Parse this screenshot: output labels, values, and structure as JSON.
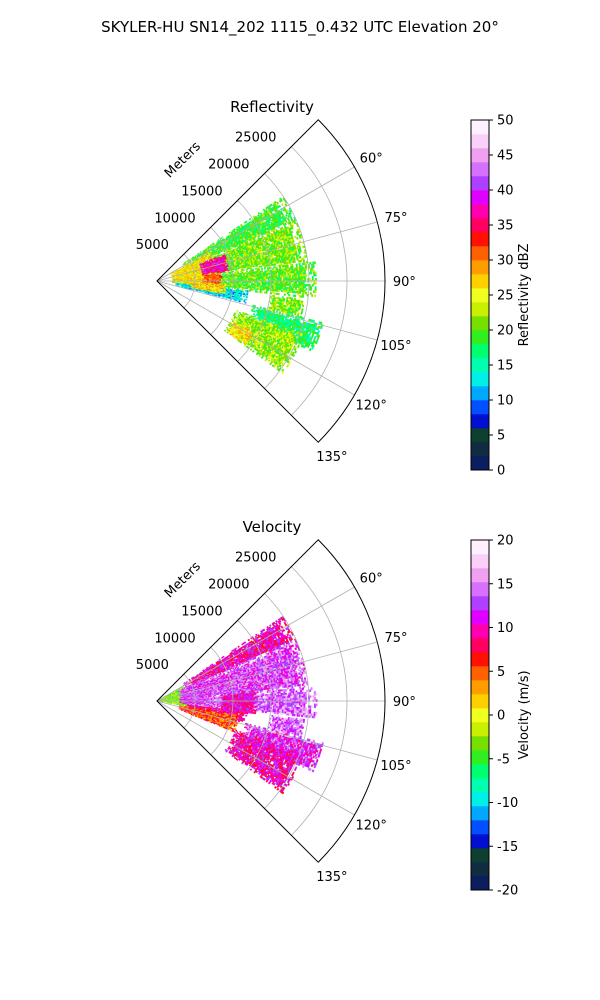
{
  "figure": {
    "suptitle": "SKYLER-HU  SN14_202  1115_0.432 UTC Elevation 20°"
  },
  "chart_data": [
    {
      "type": "heatmap",
      "title": "Reflectivity",
      "projection": "polar-sector",
      "radial_label": "Meters",
      "radial_ticks": [
        5000,
        10000,
        15000,
        20000,
        25000
      ],
      "radial_max": 30000,
      "azimuth_range_deg": [
        45,
        135
      ],
      "azimuth_ticks": [
        60,
        75,
        90,
        105,
        120,
        135
      ],
      "azimuth_tick_labels": [
        "60°",
        "75°",
        "90°",
        "105°",
        "120°",
        "135°"
      ],
      "grid": true,
      "colorbar": {
        "label": "Reflectivity dBZ",
        "min": 0,
        "max": 50,
        "ticks": [
          0,
          5,
          10,
          15,
          20,
          25,
          30,
          35,
          40,
          45,
          50
        ],
        "colors": [
          "#0c1e60",
          "#102c40",
          "#0d4030",
          "#0010d0",
          "#0050ff",
          "#00a8ff",
          "#00f0e8",
          "#00ffb0",
          "#00ff70",
          "#30ee20",
          "#78e000",
          "#c8f000",
          "#f0ff20",
          "#ffd000",
          "#ff9c00",
          "#ff6000",
          "#ff1000",
          "#ff0060",
          "#ff00b0",
          "#e000ff",
          "#b040ff",
          "#d870ff",
          "#f0a0f0",
          "#f8d0f8",
          "#fff0ff"
        ]
      },
      "echo_regions": [
        {
          "az": [
            56,
            66
          ],
          "r": [
            4000,
            20000
          ],
          "value": 19
        },
        {
          "az": [
            66,
            83
          ],
          "r": [
            3000,
            20000
          ],
          "value": 21
        },
        {
          "az": [
            83,
            96
          ],
          "r": [
            2000,
            21000
          ],
          "value": 20
        },
        {
          "az": [
            96,
            104
          ],
          "r": [
            2500,
            12000
          ],
          "value": 13
        },
        {
          "az": [
            104,
            114
          ],
          "r": [
            13000,
            22500
          ],
          "value": 17
        },
        {
          "az": [
            110,
            126
          ],
          "r": [
            11000,
            20500
          ],
          "value": 22
        },
        {
          "az": [
            60,
            95
          ],
          "r": [
            2000,
            8000
          ],
          "value": 26
        },
        {
          "az": [
            68,
            82
          ],
          "r": [
            6000,
            9500
          ],
          "value": 37
        },
        {
          "az": [
            82,
            92
          ],
          "r": [
            6000,
            8500
          ],
          "value": 31
        },
        {
          "az": [
            92,
            101
          ],
          "r": [
            4500,
            9000
          ],
          "value": 27
        },
        {
          "az": [
            118,
            126
          ],
          "r": [
            11500,
            14500
          ],
          "value": 26
        },
        {
          "az": [
            97,
            104
          ],
          "r": [
            15000,
            19500
          ],
          "value": 21
        }
      ]
    },
    {
      "type": "heatmap",
      "title": "Velocity",
      "projection": "polar-sector",
      "radial_label": "Meters",
      "radial_ticks": [
        5000,
        10000,
        15000,
        20000,
        25000
      ],
      "radial_max": 30000,
      "azimuth_range_deg": [
        45,
        135
      ],
      "azimuth_ticks": [
        60,
        75,
        90,
        105,
        120,
        135
      ],
      "azimuth_tick_labels": [
        "60°",
        "75°",
        "90°",
        "105°",
        "120°",
        "135°"
      ],
      "grid": true,
      "colorbar": {
        "label": "Velocity (m/s)",
        "min": -20,
        "max": 20,
        "ticks": [
          -20,
          -15,
          -10,
          -5,
          0,
          5,
          10,
          15,
          20
        ],
        "colors": [
          "#0c1e60",
          "#102c40",
          "#0d4030",
          "#0010d0",
          "#0050ff",
          "#00a8ff",
          "#00f0e8",
          "#00ffb0",
          "#00ff70",
          "#30ee20",
          "#78e000",
          "#c8f000",
          "#f0ff20",
          "#ffd000",
          "#ff9c00",
          "#ff6000",
          "#ff1000",
          "#ff0060",
          "#ff00b0",
          "#e000ff",
          "#b040ff",
          "#d870ff",
          "#f0a0f0",
          "#f8d0f8",
          "#fff0ff"
        ]
      },
      "echo_regions": [
        {
          "az": [
            56,
            66
          ],
          "r": [
            4000,
            20000
          ],
          "value": 10
        },
        {
          "az": [
            66,
            85
          ],
          "r": [
            3000,
            20000
          ],
          "value": 13
        },
        {
          "az": [
            85,
            96
          ],
          "r": [
            2500,
            21000
          ],
          "value": 14
        },
        {
          "az": [
            96,
            104
          ],
          "r": [
            3000,
            12000
          ],
          "value": 9
        },
        {
          "az": [
            104,
            114
          ],
          "r": [
            12000,
            22500
          ],
          "value": 12
        },
        {
          "az": [
            110,
            126
          ],
          "r": [
            11000,
            20500
          ],
          "value": 10
        },
        {
          "az": [
            100,
            112
          ],
          "r": [
            3000,
            11000
          ],
          "value": 5
        },
        {
          "az": [
            60,
            100
          ],
          "r": [
            0,
            4000
          ],
          "value": -3
        },
        {
          "az": [
            64,
            96
          ],
          "r": [
            3000,
            6500
          ],
          "value": 13
        },
        {
          "az": [
            84,
            98
          ],
          "r": [
            8500,
            13000
          ],
          "value": 10
        },
        {
          "az": [
            97,
            104
          ],
          "r": [
            15000,
            19500
          ],
          "value": 14
        }
      ]
    }
  ]
}
